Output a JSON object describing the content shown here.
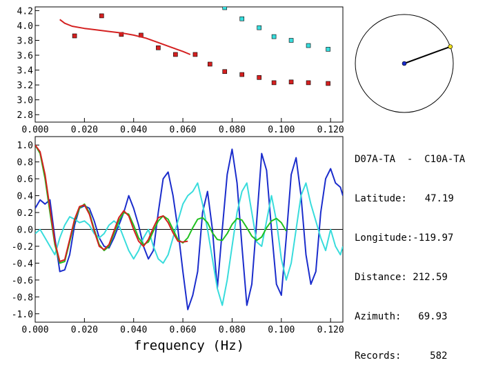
{
  "info": {
    "station_pair": "D07A-TA  -  C10A-TA",
    "latitude_label": "Latitude:",
    "latitude": "47.19",
    "longitude_label": "Longitude:",
    "longitude": "-119.97",
    "distance_label": "Distance:",
    "distance": "212.59",
    "azimuth_label": "Azimuth:",
    "azimuth": "69.93",
    "records_label": "Records:",
    "records": "582"
  },
  "azimuth_dial": {
    "azimuth_deg": 69.93
  },
  "chart_data": [
    {
      "type": "scatter",
      "title": "",
      "xlabel": "",
      "ylabel": "",
      "xlim": [
        0.0,
        0.125
      ],
      "ylim": [
        2.7,
        4.25
      ],
      "x_ticks": [
        "0.000",
        "0.020",
        "0.040",
        "0.060",
        "0.080",
        "0.100",
        "0.120"
      ],
      "y_ticks": [
        "2.8",
        "3.0",
        "3.2",
        "3.4",
        "3.6",
        "3.8",
        "4.0",
        "4.2"
      ],
      "series": [
        {
          "color": "#d42020",
          "style": "square",
          "x": [
            0.016,
            0.027,
            0.035,
            0.043,
            0.05,
            0.057,
            0.065,
            0.071,
            0.077,
            0.084,
            0.091,
            0.097,
            0.104,
            0.111,
            0.119
          ],
          "y": [
            3.86,
            4.13,
            3.88,
            3.87,
            3.7,
            3.61,
            3.61,
            3.48,
            3.38,
            3.34,
            3.3,
            3.23,
            3.24,
            3.23,
            3.22
          ]
        },
        {
          "color": "#38dcdc",
          "style": "square",
          "x": [
            0.077,
            0.084,
            0.091,
            0.097,
            0.104,
            0.111,
            0.119
          ],
          "y": [
            4.24,
            4.09,
            3.97,
            3.85,
            3.8,
            3.73,
            3.68
          ]
        },
        {
          "color": "#d42020",
          "style": "line",
          "x": [
            0.01,
            0.012,
            0.015,
            0.02,
            0.025,
            0.03,
            0.035,
            0.04,
            0.045,
            0.05,
            0.055,
            0.06,
            0.063
          ],
          "y": [
            4.08,
            4.03,
            3.99,
            3.96,
            3.94,
            3.92,
            3.9,
            3.87,
            3.83,
            3.77,
            3.71,
            3.65,
            3.61
          ]
        }
      ]
    },
    {
      "type": "line",
      "title": "",
      "xlabel": "frequency (Hz)",
      "ylabel": "",
      "xlim": [
        0.0,
        0.125
      ],
      "ylim": [
        -1.1,
        1.1
      ],
      "x_ticks": [
        "0.000",
        "0.020",
        "0.040",
        "0.060",
        "0.080",
        "0.100",
        "0.120"
      ],
      "y_ticks": [
        "1.0",
        "0.8",
        "0.6",
        "0.4",
        "0.2",
        "0.0",
        "-0.2",
        "-0.4",
        "-0.6",
        "-0.8",
        "-1.0"
      ],
      "zero_line": true,
      "series": [
        {
          "color": "#1a2ccc",
          "x": [
            0.0,
            0.002,
            0.004,
            0.006,
            0.008,
            0.01,
            0.012,
            0.014,
            0.016,
            0.018,
            0.02,
            0.022,
            0.024,
            0.026,
            0.028,
            0.03,
            0.032,
            0.034,
            0.036,
            0.038,
            0.04,
            0.042,
            0.044,
            0.046,
            0.048,
            0.05,
            0.052,
            0.054,
            0.056,
            0.058,
            0.06,
            0.062,
            0.064,
            0.066,
            0.068,
            0.07,
            0.072,
            0.074,
            0.076,
            0.078,
            0.08,
            0.082,
            0.084,
            0.086,
            0.088,
            0.09,
            0.092,
            0.094,
            0.096,
            0.098,
            0.1,
            0.102,
            0.104,
            0.106,
            0.108,
            0.11,
            0.112,
            0.114,
            0.116,
            0.118,
            0.12,
            0.122,
            0.124,
            0.125
          ],
          "y": [
            0.25,
            0.35,
            0.3,
            0.35,
            -0.1,
            -0.5,
            -0.48,
            -0.3,
            0.05,
            0.25,
            0.28,
            0.25,
            0.1,
            -0.1,
            -0.2,
            -0.22,
            -0.1,
            0.05,
            0.2,
            0.4,
            0.25,
            0.05,
            -0.2,
            -0.35,
            -0.25,
            0.2,
            0.6,
            0.68,
            0.4,
            0.0,
            -0.5,
            -0.95,
            -0.78,
            -0.5,
            0.2,
            0.45,
            0.0,
            -0.7,
            0.0,
            0.65,
            0.95,
            0.55,
            -0.2,
            -0.9,
            -0.65,
            0.1,
            0.9,
            0.7,
            0.0,
            -0.65,
            -0.78,
            -0.1,
            0.65,
            0.85,
            0.4,
            -0.3,
            -0.65,
            -0.5,
            0.2,
            0.6,
            0.72,
            0.55,
            0.5,
            0.4
          ]
        },
        {
          "color": "#38dcdc",
          "x": [
            0.0,
            0.002,
            0.004,
            0.006,
            0.008,
            0.01,
            0.012,
            0.014,
            0.016,
            0.018,
            0.02,
            0.022,
            0.024,
            0.026,
            0.028,
            0.03,
            0.032,
            0.034,
            0.036,
            0.038,
            0.04,
            0.042,
            0.044,
            0.046,
            0.048,
            0.05,
            0.052,
            0.054,
            0.056,
            0.058,
            0.06,
            0.062,
            0.064,
            0.066,
            0.068,
            0.07,
            0.072,
            0.074,
            0.076,
            0.078,
            0.08,
            0.082,
            0.084,
            0.086,
            0.088,
            0.09,
            0.092,
            0.094,
            0.096,
            0.098,
            0.1,
            0.102,
            0.104,
            0.106,
            0.108,
            0.11,
            0.112,
            0.114,
            0.116,
            0.118,
            0.12,
            0.122,
            0.124,
            0.125
          ],
          "y": [
            -0.05,
            0.0,
            -0.1,
            -0.2,
            -0.3,
            -0.1,
            0.05,
            0.15,
            0.12,
            0.08,
            0.1,
            0.05,
            -0.05,
            -0.1,
            -0.05,
            0.05,
            0.1,
            0.05,
            -0.1,
            -0.25,
            -0.35,
            -0.25,
            -0.1,
            0.0,
            -0.2,
            -0.35,
            -0.4,
            -0.3,
            -0.1,
            0.1,
            0.3,
            0.4,
            0.45,
            0.55,
            0.3,
            0.0,
            -0.35,
            -0.7,
            -0.9,
            -0.6,
            -0.2,
            0.2,
            0.45,
            0.55,
            0.2,
            -0.15,
            -0.2,
            0.1,
            0.4,
            0.1,
            -0.35,
            -0.6,
            -0.4,
            0.0,
            0.4,
            0.55,
            0.3,
            0.1,
            -0.1,
            -0.25,
            0.0,
            -0.2,
            -0.3,
            -0.2
          ]
        },
        {
          "color": "#20c020",
          "x": [
            0.0,
            0.002,
            0.004,
            0.006,
            0.008,
            0.01,
            0.012,
            0.014,
            0.016,
            0.018,
            0.02,
            0.022,
            0.024,
            0.026,
            0.028,
            0.03,
            0.032,
            0.034,
            0.036,
            0.038,
            0.04,
            0.042,
            0.044,
            0.046,
            0.048,
            0.05,
            0.052,
            0.054,
            0.056,
            0.058,
            0.06,
            0.062,
            0.064,
            0.066,
            0.068,
            0.07,
            0.072,
            0.074,
            0.076,
            0.078,
            0.08,
            0.082,
            0.084,
            0.086,
            0.088,
            0.09,
            0.092,
            0.094,
            0.096,
            0.098,
            0.1,
            0.102
          ],
          "y": [
            1.0,
            0.9,
            0.6,
            0.2,
            -0.18,
            -0.4,
            -0.38,
            -0.15,
            0.1,
            0.25,
            0.3,
            0.2,
            0.0,
            -0.18,
            -0.25,
            -0.2,
            -0.05,
            0.1,
            0.2,
            0.18,
            0.05,
            -0.1,
            -0.18,
            -0.15,
            -0.02,
            0.1,
            0.16,
            0.12,
            0.0,
            -0.12,
            -0.16,
            -0.1,
            0.02,
            0.12,
            0.14,
            0.08,
            -0.04,
            -0.12,
            -0.13,
            -0.05,
            0.06,
            0.13,
            0.11,
            0.02,
            -0.08,
            -0.13,
            -0.09,
            0.02,
            0.1,
            0.13,
            0.08,
            -0.02
          ]
        },
        {
          "color": "#d42020",
          "x": [
            0.0,
            0.002,
            0.004,
            0.006,
            0.008,
            0.01,
            0.012,
            0.014,
            0.016,
            0.018,
            0.02,
            0.022,
            0.024,
            0.026,
            0.028,
            0.03,
            0.032,
            0.034,
            0.036,
            0.038,
            0.04,
            0.042,
            0.044,
            0.046,
            0.048,
            0.05,
            0.052,
            0.054,
            0.056,
            0.058,
            0.06,
            0.062
          ],
          "y": [
            1.0,
            0.92,
            0.65,
            0.25,
            -0.15,
            -0.38,
            -0.36,
            -0.12,
            0.12,
            0.27,
            0.29,
            0.18,
            -0.02,
            -0.2,
            -0.24,
            -0.18,
            -0.02,
            0.14,
            0.22,
            0.16,
            0.0,
            -0.14,
            -0.2,
            -0.12,
            0.02,
            0.14,
            0.16,
            0.08,
            -0.04,
            -0.14,
            -0.15,
            -0.14
          ]
        }
      ]
    }
  ]
}
